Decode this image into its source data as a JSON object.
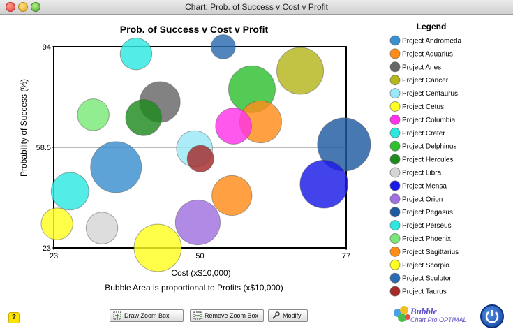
{
  "window": {
    "title": "Chart: Prob. of Success v Cost v Profit"
  },
  "chart_data": {
    "type": "scatter",
    "title": "Prob. of Success v Cost v Profit",
    "xlabel": "Cost (x$10,000)",
    "ylabel": "Probability of Success (%)",
    "subtitle": "Bubble Area is proportional to Profits (x$10,000)",
    "xlim": [
      23,
      77
    ],
    "ylim": [
      23,
      94
    ],
    "xticks": [
      "23",
      "50",
      "77"
    ],
    "yticks": [
      "94",
      "58.5",
      "23"
    ],
    "crosshair": {
      "x": 50,
      "y": 58.5
    },
    "legend_title": "Legend",
    "legend_position": "right",
    "series": [
      {
        "name": "Project Andromeda",
        "color": "#3a8fd0",
        "x": 34.5,
        "y": 51.5,
        "profit": 44
      },
      {
        "name": "Project Aquarius",
        "color": "#ff8c1a",
        "x": 61.2,
        "y": 67.5,
        "profit": 30
      },
      {
        "name": "Project Aries",
        "color": "#666666",
        "x": 42.6,
        "y": 74.5,
        "profit": 28
      },
      {
        "name": "Project Cancer",
        "color": "#b5b51c",
        "x": 68.5,
        "y": 85.5,
        "profit": 37
      },
      {
        "name": "Project Centaurus",
        "color": "#9ae8f8",
        "x": 49.0,
        "y": 58.0,
        "profit": 22
      },
      {
        "name": "Project Cetus",
        "color": "#ffff22",
        "x": 42.2,
        "y": 23.0,
        "profit": 38
      },
      {
        "name": "Project Columbia",
        "color": "#ff33e8",
        "x": 56.2,
        "y": 66.0,
        "profit": 22
      },
      {
        "name": "Project Crater",
        "color": "#2ee8e0",
        "x": 38.2,
        "y": 91.5,
        "profit": 17
      },
      {
        "name": "Project Delphinus",
        "color": "#2ec02e",
        "x": 59.6,
        "y": 79.0,
        "profit": 37
      },
      {
        "name": "Project Hercules",
        "color": "#1e8a1e",
        "x": 39.6,
        "y": 69.0,
        "profit": 22
      },
      {
        "name": "Project Libra",
        "color": "#d5d5d5",
        "x": 31.9,
        "y": 30.0,
        "profit": 17
      },
      {
        "name": "Project Mensa",
        "color": "#1a1ae8",
        "x": 72.9,
        "y": 45.5,
        "profit": 39
      },
      {
        "name": "Project Orion",
        "color": "#a070e0",
        "x": 49.6,
        "y": 32.0,
        "profit": 34
      },
      {
        "name": "Project Pegasus",
        "color": "#1e5aa0",
        "x": 76.6,
        "y": 59.5,
        "profit": 48
      },
      {
        "name": "Project Perseus",
        "color": "#2ee8e0",
        "x": 26.0,
        "y": 43.0,
        "profit": 24
      },
      {
        "name": "Project Phoenix",
        "color": "#7ae878",
        "x": 30.3,
        "y": 70.0,
        "profit": 17
      },
      {
        "name": "Project Sagittarius",
        "color": "#ff8c1a",
        "x": 55.9,
        "y": 41.5,
        "profit": 27
      },
      {
        "name": "Project Scorpio",
        "color": "#ffff22",
        "x": 23.6,
        "y": 31.5,
        "profit": 17
      },
      {
        "name": "Project Sculptor",
        "color": "#2a6ab0",
        "x": 54.3,
        "y": 94.0,
        "profit": 10
      },
      {
        "name": "Project Taurus",
        "color": "#a52a2a",
        "x": 50.1,
        "y": 54.5,
        "profit": 12
      }
    ],
    "draw_order": [
      13,
      11,
      14,
      0,
      3,
      8,
      1,
      7,
      15,
      2,
      9,
      4,
      6,
      5,
      16,
      12,
      10,
      17,
      18,
      19
    ]
  },
  "buttons": {
    "draw_zoom": "Draw Zoom Box",
    "remove_zoom": "Remove Zoom Box",
    "modify": "Modify",
    "help": "?"
  },
  "logo": {
    "name": "Bubble",
    "sub": "Chart Pro OPTIMAL"
  }
}
